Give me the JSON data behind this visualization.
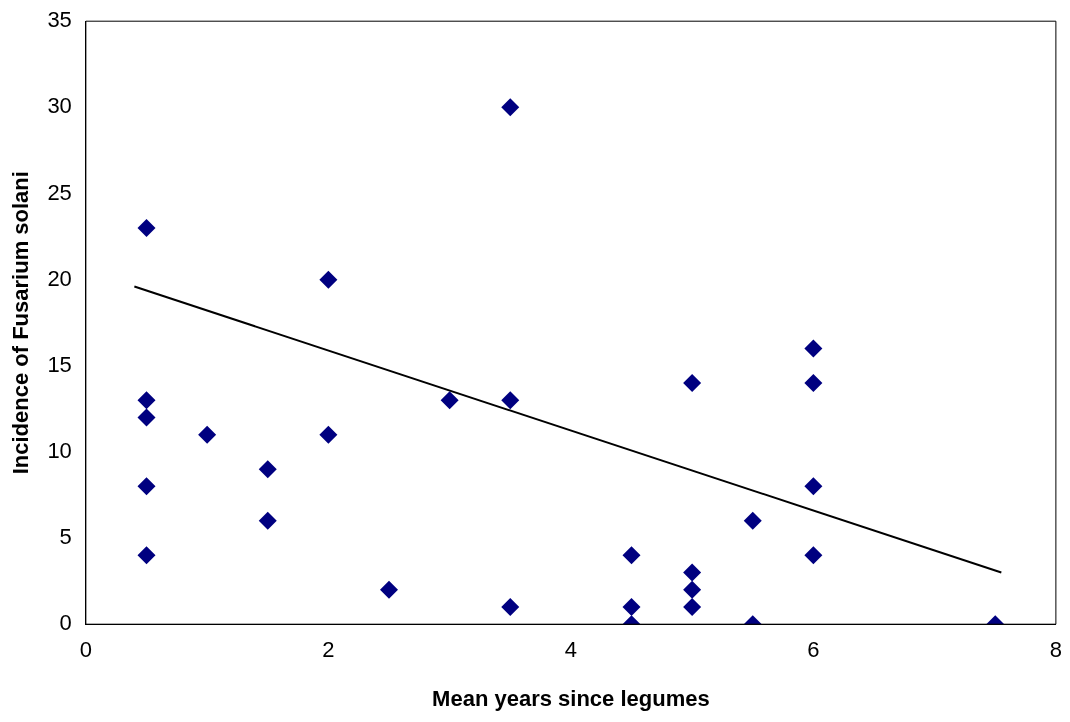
{
  "chart_data": {
    "type": "scatter",
    "xlabel": "Mean years since legumes",
    "ylabel": "Incidence of Fusarium solani",
    "xlim": [
      0,
      8
    ],
    "xticks": [
      0,
      2,
      4,
      6,
      8
    ],
    "ylim": [
      0,
      35
    ],
    "yticks": [
      0,
      5,
      10,
      15,
      20,
      25,
      30,
      35
    ],
    "grid": false,
    "legend": false,
    "marker": "diamond",
    "series": [
      {
        "type": "scatter",
        "color": "#000080",
        "x": [
          0.5,
          0.5,
          0.5,
          0.5,
          0.5,
          1,
          1.5,
          1.5,
          2,
          2,
          2.5,
          3,
          3.5,
          3.5,
          3.5,
          4.5,
          4.5,
          4.5,
          5,
          5,
          5,
          5,
          5.5,
          5.5,
          6,
          6,
          6,
          6,
          7.5
        ],
        "values": [
          23,
          13,
          12,
          8,
          4,
          11,
          9,
          6,
          20,
          11,
          2,
          13,
          30,
          13,
          1,
          4,
          1,
          0,
          14,
          3,
          2,
          1,
          6,
          0,
          16,
          14,
          8,
          4,
          0
        ]
      },
      {
        "type": "line",
        "color": "#000000",
        "marker": "none",
        "x": [
          0.4,
          7.55
        ],
        "values": [
          19.6,
          3.0
        ]
      }
    ]
  }
}
